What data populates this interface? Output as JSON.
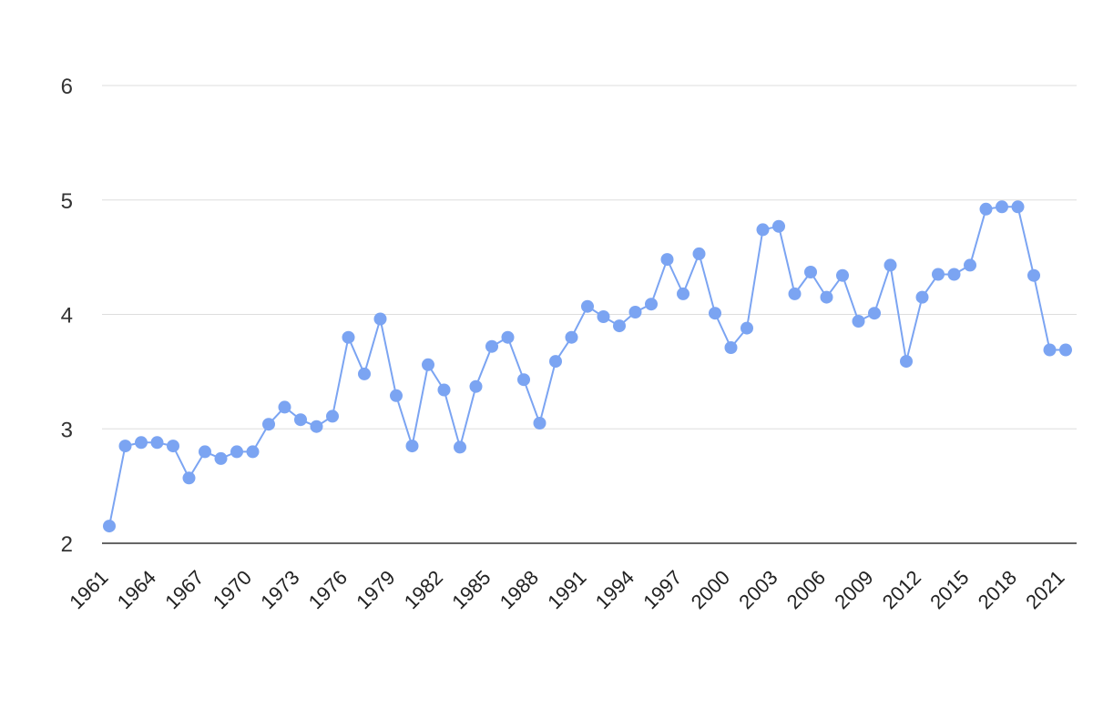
{
  "chart_data": {
    "type": "line",
    "title": "",
    "xlabel": "",
    "ylabel": "",
    "ylim": [
      2,
      6
    ],
    "y_ticks": [
      2,
      3,
      4,
      5,
      6
    ],
    "x_tick_labels": [
      "1961",
      "1964",
      "1967",
      "1970",
      "1973",
      "1976",
      "1979",
      "1982",
      "1985",
      "1988",
      "1991",
      "1994",
      "1997",
      "2000",
      "2003",
      "2006",
      "2009",
      "2012",
      "2015",
      "2018",
      "2021"
    ],
    "grid": true,
    "legend": "none",
    "x": [
      1961,
      1962,
      1963,
      1964,
      1965,
      1966,
      1967,
      1968,
      1969,
      1970,
      1971,
      1972,
      1973,
      1974,
      1975,
      1976,
      1977,
      1978,
      1979,
      1980,
      1981,
      1982,
      1983,
      1984,
      1985,
      1986,
      1987,
      1988,
      1989,
      1990,
      1991,
      1992,
      1993,
      1994,
      1995,
      1996,
      1997,
      1998,
      1999,
      2000,
      2001,
      2002,
      2003,
      2004,
      2005,
      2006,
      2007,
      2008,
      2009,
      2010,
      2011,
      2012,
      2013,
      2014,
      2015,
      2016,
      2017,
      2018,
      2019,
      2020,
      2021
    ],
    "series": [
      {
        "color": "#7ba4f2",
        "values": [
          2.15,
          2.85,
          2.88,
          2.88,
          2.85,
          2.57,
          2.8,
          2.74,
          2.8,
          2.8,
          3.04,
          3.19,
          3.08,
          3.02,
          3.11,
          3.8,
          3.48,
          3.96,
          3.29,
          2.85,
          3.56,
          3.34,
          2.84,
          3.37,
          3.72,
          3.8,
          3.43,
          3.05,
          3.59,
          3.8,
          4.07,
          3.98,
          3.9,
          4.02,
          4.09,
          4.48,
          4.18,
          4.53,
          4.01,
          3.71,
          3.88,
          4.74,
          4.77,
          4.18,
          4.37,
          4.15,
          4.34,
          3.94,
          4.01,
          4.43,
          3.59,
          4.15,
          4.35,
          4.35,
          4.43,
          4.92,
          4.94,
          4.94,
          4.34,
          3.69,
          3.69
        ]
      }
    ]
  }
}
